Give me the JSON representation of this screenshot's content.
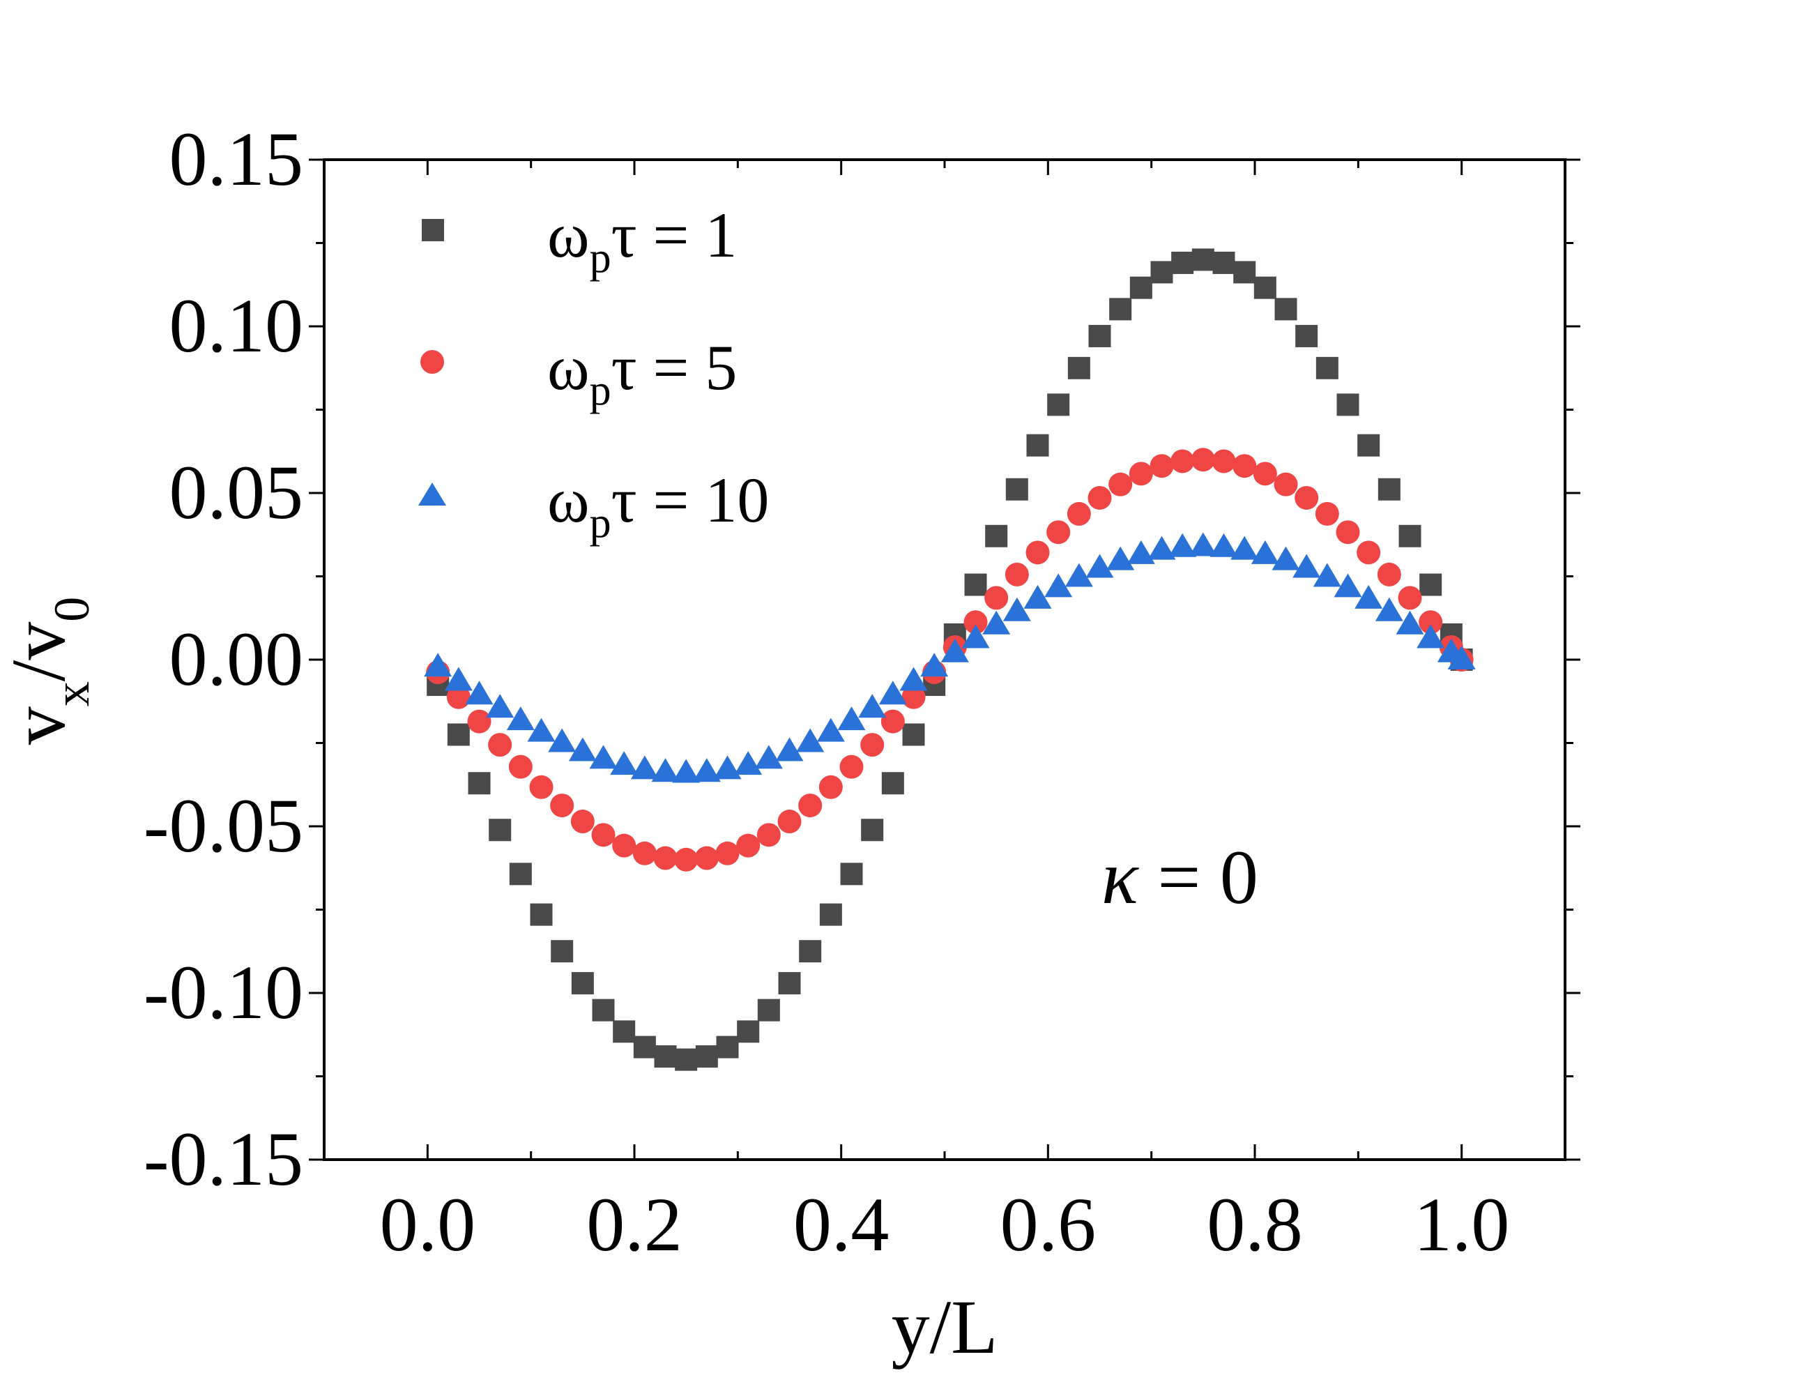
{
  "chart_data": {
    "type": "scatter",
    "title": "",
    "xlabel": "y/L",
    "ylabel": {
      "main": "v",
      "sub1": "x",
      "sep": "/v",
      "sub2": "0"
    },
    "xlim": [
      -0.1,
      1.1
    ],
    "ylim": [
      -0.15,
      0.15
    ],
    "xticks": [
      0.0,
      0.2,
      0.4,
      0.6,
      0.8,
      1.0
    ],
    "xtick_labels": [
      "0.0",
      "0.2",
      "0.4",
      "0.6",
      "0.8",
      "1.0"
    ],
    "yticks": [
      0.15,
      0.1,
      0.05,
      0.0,
      -0.05,
      -0.1,
      -0.15
    ],
    "ytick_labels": [
      "0.15",
      "0.10",
      "0.05",
      "0.00",
      "-0.05",
      "-0.10",
      "-0.15"
    ],
    "grid": false,
    "legend_position": "top-left",
    "annotation": {
      "symbol": "κ",
      "text": " = 0",
      "position": "lower-right"
    },
    "series": [
      {
        "name": "ωpτ = 1",
        "legend": {
          "base": "ω",
          "sub": "p",
          "rest": "τ = 1"
        },
        "marker": "square",
        "color": "#4a4a4a",
        "amplitude": 0.12
      },
      {
        "name": "ωpτ = 5",
        "legend": {
          "base": "ω",
          "sub": "p",
          "rest": "τ = 5"
        },
        "marker": "circle",
        "color": "#ef4545",
        "amplitude": 0.06
      },
      {
        "name": "ωpτ = 10",
        "legend": {
          "base": "ω",
          "sub": "p",
          "rest": "τ = 10"
        },
        "marker": "triangle",
        "color": "#2a72d8",
        "amplitude": 0.034
      }
    ],
    "x": [
      0.01,
      0.03,
      0.05,
      0.07,
      0.09,
      0.11,
      0.13,
      0.15,
      0.17,
      0.19,
      0.21,
      0.23,
      0.25,
      0.27,
      0.29,
      0.31,
      0.33,
      0.35,
      0.37,
      0.39,
      0.41,
      0.43,
      0.45,
      0.47,
      0.49,
      0.51,
      0.53,
      0.55,
      0.57,
      0.59,
      0.61,
      0.63,
      0.65,
      0.67,
      0.69,
      0.71,
      0.73,
      0.75,
      0.77,
      0.79,
      0.81,
      0.83,
      0.85,
      0.87,
      0.89,
      0.91,
      0.93,
      0.95,
      0.97,
      0.99,
      1.0
    ],
    "profile": [
      -0.0628,
      -0.1874,
      -0.309,
      -0.4258,
      -0.5358,
      -0.6374,
      -0.729,
      -0.809,
      -0.8763,
      -0.9298,
      -0.9686,
      -0.9921,
      -1.0,
      -0.9921,
      -0.9686,
      -0.9298,
      -0.8763,
      -0.809,
      -0.729,
      -0.6374,
      -0.5358,
      -0.4258,
      -0.309,
      -0.1874,
      -0.0628,
      0.0628,
      0.1874,
      0.309,
      0.4258,
      0.5358,
      0.6374,
      0.729,
      0.809,
      0.8763,
      0.9298,
      0.9686,
      0.9921,
      1.0,
      0.9921,
      0.9686,
      0.9298,
      0.8763,
      0.809,
      0.729,
      0.6374,
      0.5358,
      0.4258,
      0.309,
      0.1874,
      0.0628,
      0.0
    ]
  }
}
